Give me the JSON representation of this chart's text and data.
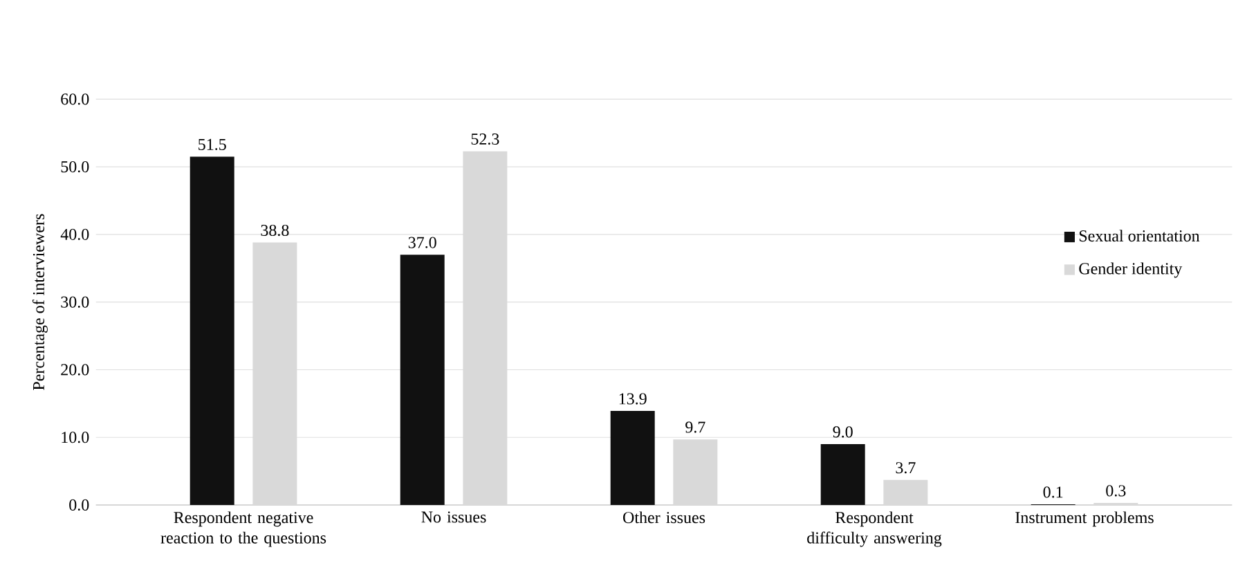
{
  "chart_data": {
    "type": "bar",
    "ylabel": "Percentage of interviewers",
    "categories": [
      "Respondent negative reaction to the questions",
      "No issues",
      "Other issues",
      "Respondent difficulty answering",
      "Instrument problems"
    ],
    "series": [
      {
        "name": "Sexual orientation",
        "color": "#111111",
        "values": [
          51.5,
          37.0,
          13.9,
          9.0,
          0.1
        ],
        "value_labels": [
          "51.5",
          "37.0",
          "13.9",
          "9.0",
          "0.1"
        ]
      },
      {
        "name": "Gender identity",
        "color": "#d9d9d9",
        "values": [
          38.8,
          52.3,
          9.7,
          3.7,
          0.3
        ],
        "value_labels": [
          "38.8",
          "52.3",
          "9.7",
          "3.7",
          "0.3"
        ]
      }
    ],
    "ylim": [
      0,
      60
    ],
    "yticks": [
      {
        "value": 0,
        "label": "0.0"
      },
      {
        "value": 10,
        "label": "10.0"
      },
      {
        "value": 20,
        "label": "20.0"
      },
      {
        "value": 30,
        "label": "30.0"
      },
      {
        "value": 40,
        "label": "40.0"
      },
      {
        "value": 50,
        "label": "50.0"
      },
      {
        "value": 60,
        "label": "60.0"
      }
    ],
    "grid": "y",
    "legend": "right"
  }
}
